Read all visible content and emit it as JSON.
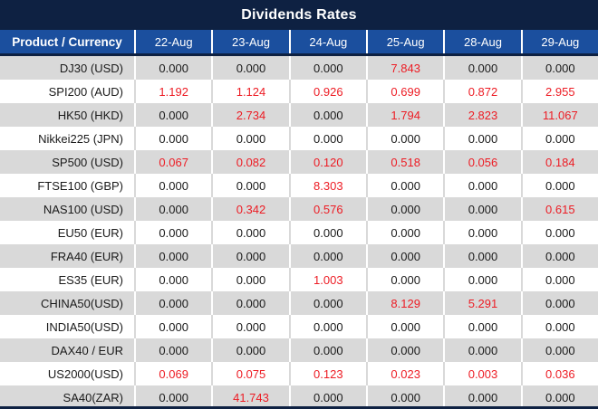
{
  "title": "Dividends Rates",
  "colors": {
    "navy": "#0e2142",
    "header_blue": "#1b4f9e",
    "shaded_row": "#d9d9d9",
    "nonzero_red": "#ed1c24",
    "text": "#1a1a1a",
    "header_text": "#ffffff"
  },
  "chart_data": {
    "type": "table",
    "title": "Dividends Rates",
    "columns": [
      "Product / Currency",
      "22-Aug",
      "23-Aug",
      "24-Aug",
      "25-Aug",
      "28-Aug",
      "29-Aug"
    ],
    "rows": [
      {
        "label": "DJ30 (USD)",
        "values": [
          "0.000",
          "0.000",
          "0.000",
          "7.843",
          "0.000",
          "0.000"
        ]
      },
      {
        "label": "SPI200 (AUD)",
        "values": [
          "1.192",
          "1.124",
          "0.926",
          "0.699",
          "0.872",
          "2.955"
        ]
      },
      {
        "label": "HK50 (HKD)",
        "values": [
          "0.000",
          "2.734",
          "0.000",
          "1.794",
          "2.823",
          "11.067"
        ]
      },
      {
        "label": "Nikkei225 (JPN)",
        "values": [
          "0.000",
          "0.000",
          "0.000",
          "0.000",
          "0.000",
          "0.000"
        ]
      },
      {
        "label": "SP500 (USD)",
        "values": [
          "0.067",
          "0.082",
          "0.120",
          "0.518",
          "0.056",
          "0.184"
        ]
      },
      {
        "label": "FTSE100 (GBP)",
        "values": [
          "0.000",
          "0.000",
          "8.303",
          "0.000",
          "0.000",
          "0.000"
        ]
      },
      {
        "label": "NAS100 (USD)",
        "values": [
          "0.000",
          "0.342",
          "0.576",
          "0.000",
          "0.000",
          "0.615"
        ]
      },
      {
        "label": "EU50 (EUR)",
        "values": [
          "0.000",
          "0.000",
          "0.000",
          "0.000",
          "0.000",
          "0.000"
        ]
      },
      {
        "label": "FRA40 (EUR)",
        "values": [
          "0.000",
          "0.000",
          "0.000",
          "0.000",
          "0.000",
          "0.000"
        ]
      },
      {
        "label": "ES35 (EUR)",
        "values": [
          "0.000",
          "0.000",
          "1.003",
          "0.000",
          "0.000",
          "0.000"
        ]
      },
      {
        "label": "CHINA50(USD)",
        "values": [
          "0.000",
          "0.000",
          "0.000",
          "8.129",
          "5.291",
          "0.000"
        ]
      },
      {
        "label": "INDIA50(USD)",
        "values": [
          "0.000",
          "0.000",
          "0.000",
          "0.000",
          "0.000",
          "0.000"
        ]
      },
      {
        "label": "DAX40 / EUR",
        "values": [
          "0.000",
          "0.000",
          "0.000",
          "0.000",
          "0.000",
          "0.000"
        ]
      },
      {
        "label": "US2000(USD)",
        "values": [
          "0.069",
          "0.075",
          "0.123",
          "0.023",
          "0.003",
          "0.036"
        ]
      },
      {
        "label": "SA40(ZAR)",
        "values": [
          "0.000",
          "41.743",
          "0.000",
          "0.000",
          "0.000",
          "0.000"
        ]
      }
    ]
  },
  "table": {
    "header": {
      "product_label": "Product / Currency",
      "dates": [
        "22-Aug",
        "23-Aug",
        "24-Aug",
        "25-Aug",
        "28-Aug",
        "29-Aug"
      ]
    }
  }
}
